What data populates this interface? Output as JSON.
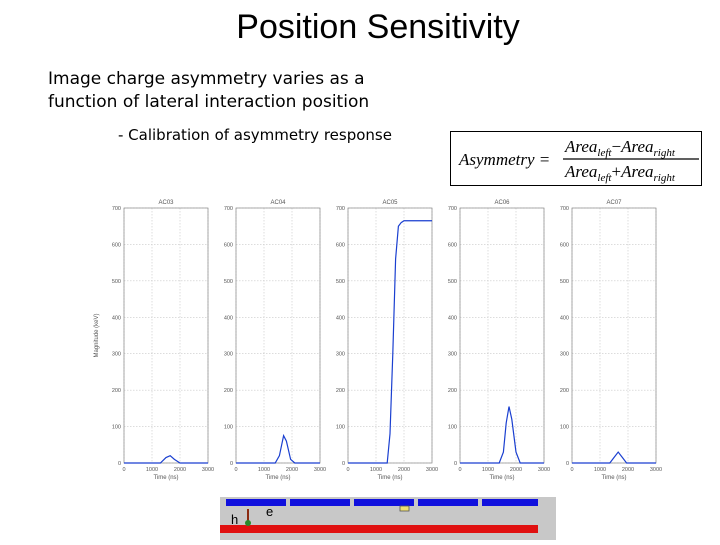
{
  "slide": {
    "title": "Position Sensitivity",
    "subtitle_line1": "Image charge asymmetry varies as a",
    "subtitle_line2": "function of lateral interaction position",
    "bullet": "- Calibration of asymmetry response"
  },
  "formula": {
    "lhs": "Asymmetry =",
    "num_a": "Area",
    "num_a_sub": "left",
    "num_op": "−",
    "num_b": "Area",
    "num_b_sub": "right",
    "den_a": "Area",
    "den_a_sub": "left",
    "den_op": "+",
    "den_b": "Area",
    "den_b_sub": "right"
  },
  "detector": {
    "label_h": "h",
    "label_e": "e",
    "strip_color": "#1010dd",
    "base_color": "#e01010",
    "h_marker_color": "#2a8a2a",
    "e_marker_color": "#f0e070"
  },
  "chart_data": [
    {
      "type": "line",
      "title": "AC03",
      "xlabel": "Time (ns)",
      "ylabel": "Magnitude (keV)",
      "xlim": [
        0,
        3000
      ],
      "ylim": [
        0,
        700
      ],
      "xticks": [
        0,
        1000,
        2000,
        3000
      ],
      "yticks": [
        0,
        100,
        200,
        300,
        400,
        500,
        600,
        700
      ],
      "grid": true,
      "line_color": "#1a3fd0",
      "series": [
        {
          "x": [
            0,
            1300,
            1500,
            1650,
            1800,
            2000,
            3000
          ],
          "y": [
            0,
            0,
            15,
            20,
            10,
            0,
            0
          ]
        }
      ]
    },
    {
      "type": "line",
      "title": "AC04",
      "xlabel": "Time (ns)",
      "ylabel": "",
      "xlim": [
        0,
        3000
      ],
      "ylim": [
        0,
        700
      ],
      "xticks": [
        0,
        1000,
        2000,
        3000
      ],
      "yticks": [
        0,
        100,
        200,
        300,
        400,
        500,
        600,
        700
      ],
      "grid": true,
      "line_color": "#1a3fd0",
      "series": [
        {
          "x": [
            0,
            1400,
            1550,
            1700,
            1800,
            1950,
            2100,
            3000
          ],
          "y": [
            0,
            0,
            20,
            75,
            60,
            10,
            0,
            0
          ]
        }
      ]
    },
    {
      "type": "line",
      "title": "AC05",
      "xlabel": "Time (ns)",
      "ylabel": "",
      "xlim": [
        0,
        3000
      ],
      "ylim": [
        0,
        700
      ],
      "xticks": [
        0,
        1000,
        2000,
        3000
      ],
      "yticks": [
        0,
        100,
        200,
        300,
        400,
        500,
        600,
        700
      ],
      "grid": true,
      "line_color": "#1a3fd0",
      "series": [
        {
          "x": [
            0,
            1400,
            1500,
            1600,
            1700,
            1800,
            1900,
            2000,
            2200,
            2500,
            3000
          ],
          "y": [
            0,
            0,
            80,
            300,
            560,
            650,
            660,
            665,
            665,
            665,
            665
          ]
        }
      ]
    },
    {
      "type": "line",
      "title": "AC06",
      "xlabel": "Time (ns)",
      "ylabel": "",
      "xlim": [
        0,
        3000
      ],
      "ylim": [
        0,
        700
      ],
      "xticks": [
        0,
        1000,
        2000,
        3000
      ],
      "yticks": [
        0,
        100,
        200,
        300,
        400,
        500,
        600,
        700
      ],
      "grid": true,
      "line_color": "#1a3fd0",
      "series": [
        {
          "x": [
            0,
            1400,
            1550,
            1650,
            1750,
            1850,
            2000,
            2150,
            3000
          ],
          "y": [
            0,
            0,
            30,
            110,
            155,
            120,
            30,
            0,
            0
          ]
        }
      ]
    },
    {
      "type": "line",
      "title": "AC07",
      "xlabel": "Time (ns)",
      "ylabel": "",
      "xlim": [
        0,
        3000
      ],
      "ylim": [
        0,
        700
      ],
      "xticks": [
        0,
        1000,
        2000,
        3000
      ],
      "yticks": [
        0,
        100,
        200,
        300,
        400,
        500,
        600,
        700
      ],
      "grid": true,
      "line_color": "#1a3fd0",
      "series": [
        {
          "x": [
            0,
            1350,
            1500,
            1650,
            1800,
            1950,
            3000
          ],
          "y": [
            0,
            0,
            15,
            30,
            15,
            0,
            0
          ]
        }
      ]
    }
  ]
}
